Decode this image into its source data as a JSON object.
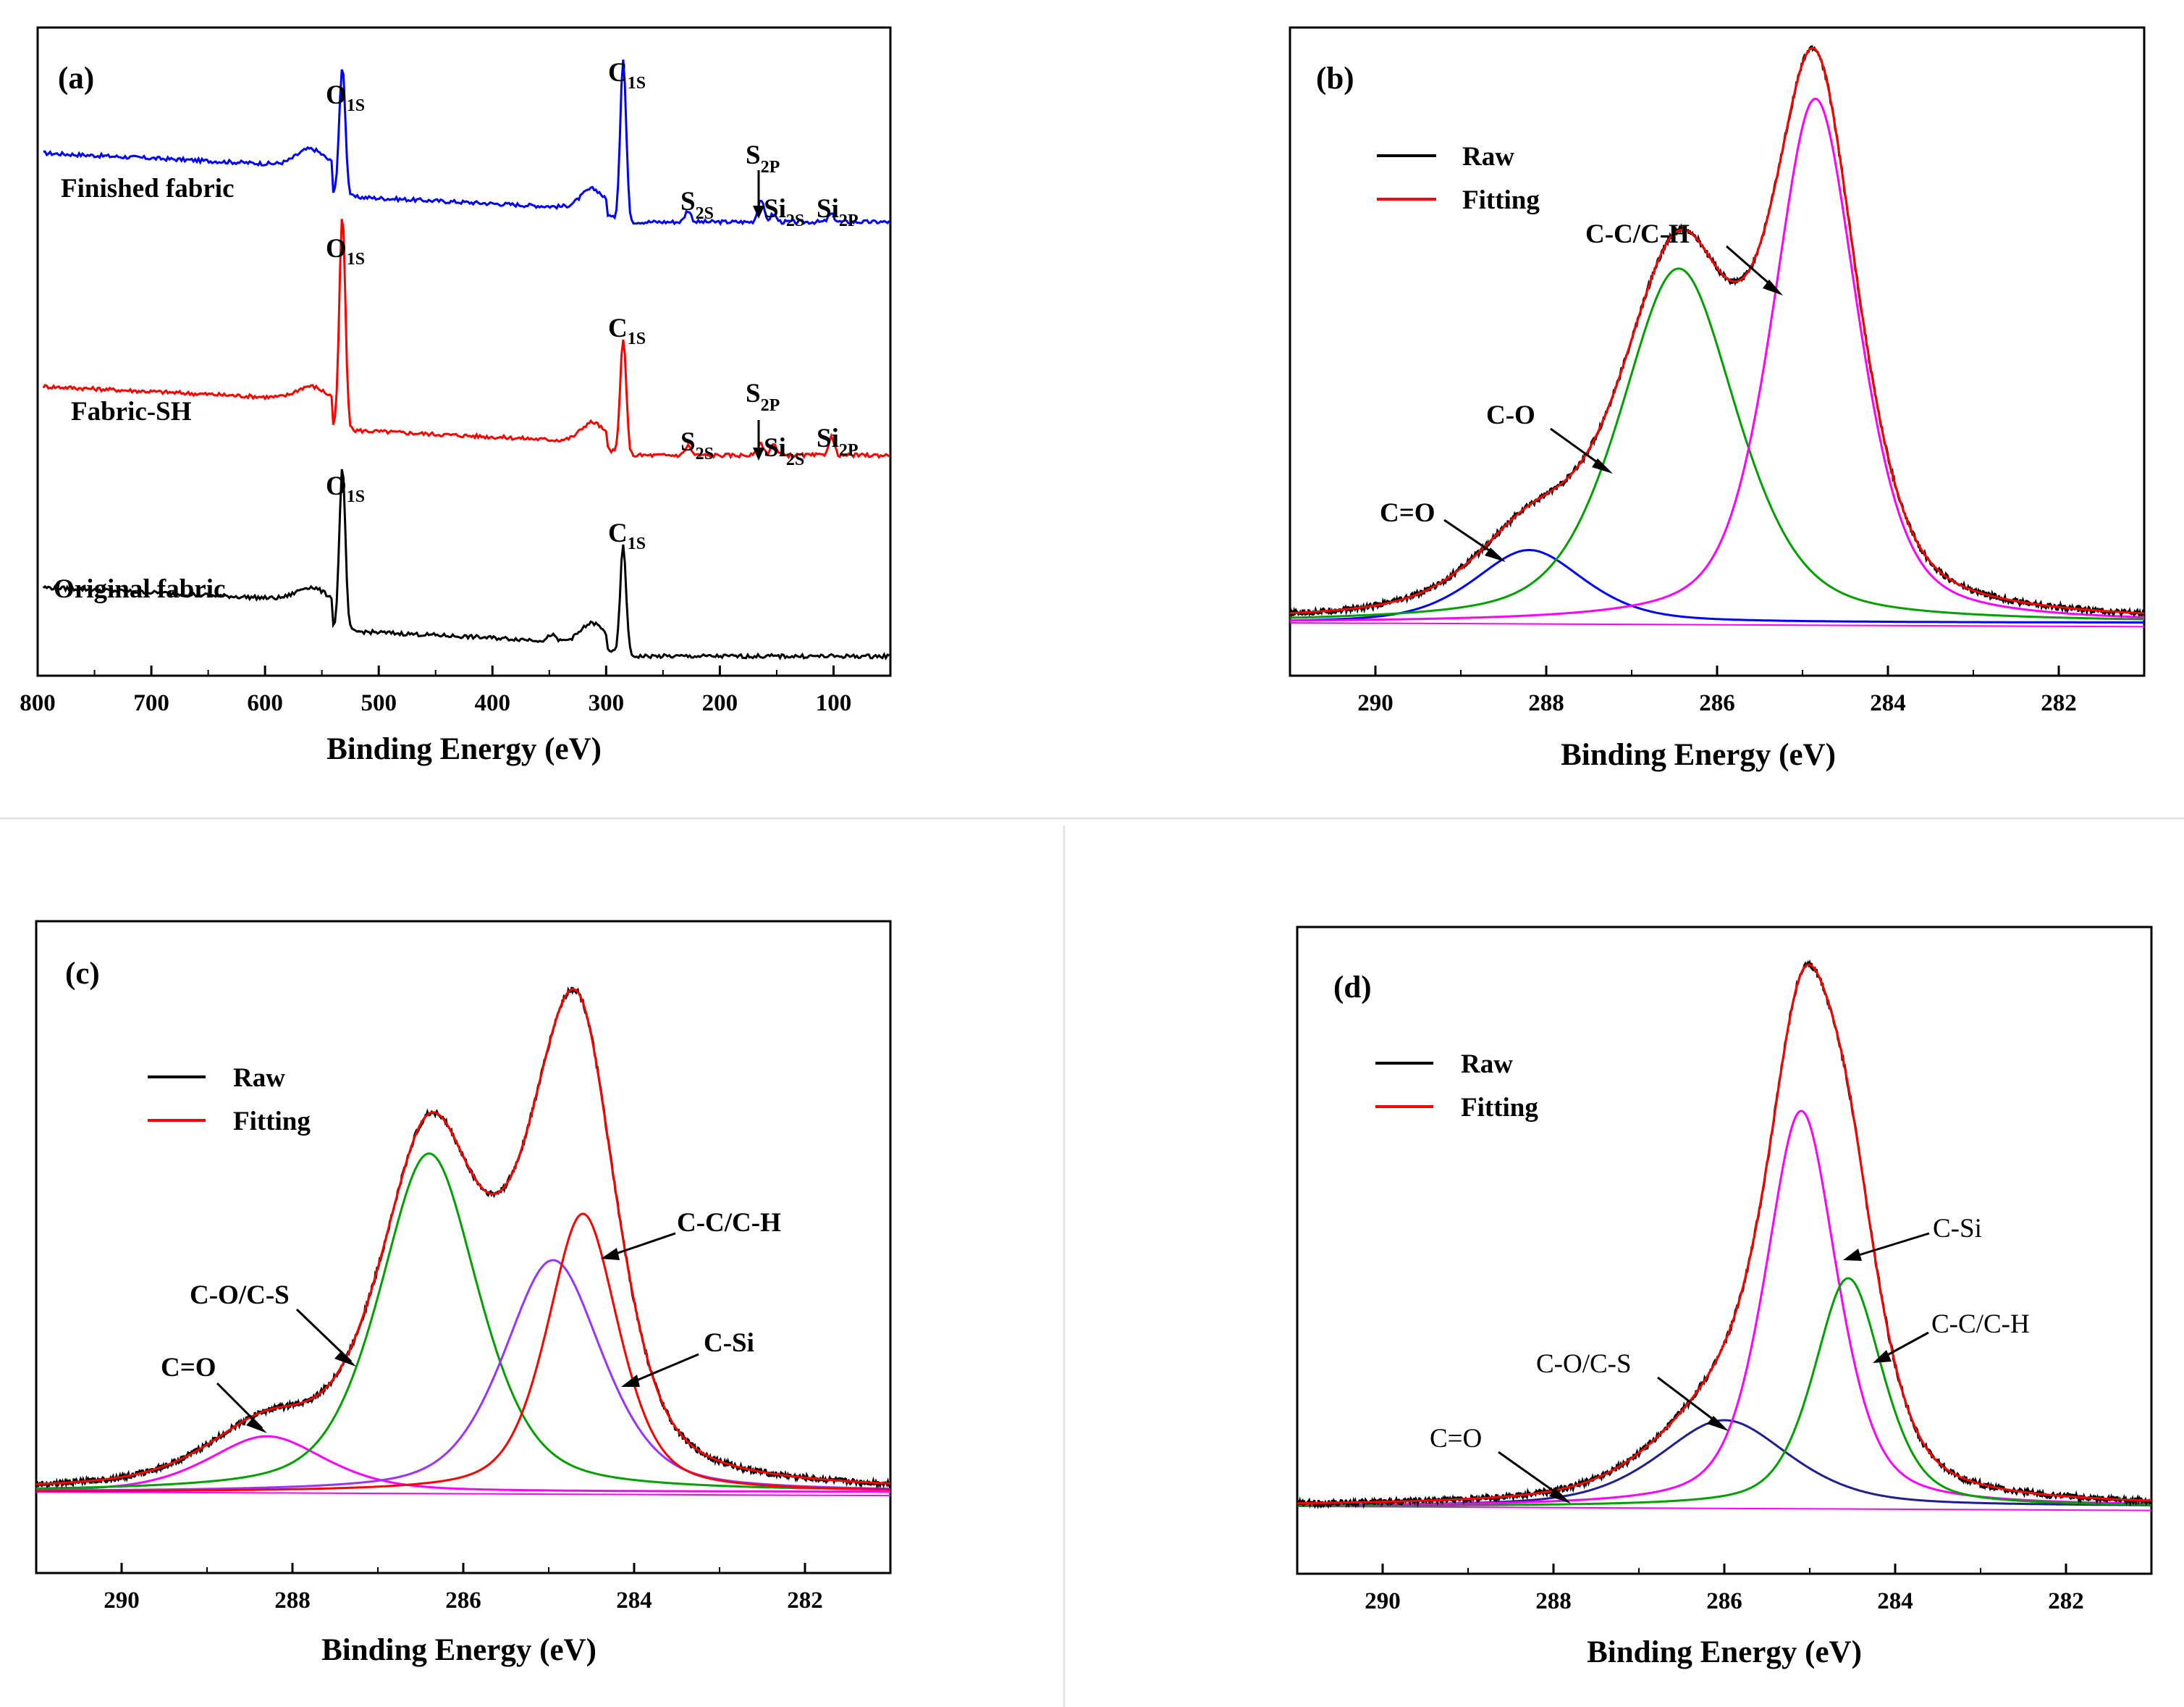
{
  "colors": {
    "raw": "#000000",
    "fitting": "#ff0000",
    "blue": "#0000ff",
    "green": "#00a000",
    "magenta": "#ff00ff",
    "purple": "#9933ff",
    "navy": "#1f1f8f",
    "axis": "#000000",
    "divider": "#e4e4e4"
  },
  "chart_data": [
    {
      "panel": "(a)",
      "type": "line",
      "xlabel": "Binding Energy (eV)",
      "xlim": [
        800,
        50
      ],
      "xticks": [
        800,
        700,
        600,
        500,
        400,
        300,
        200,
        100
      ],
      "y_ticks_shown": false,
      "series": [
        {
          "name": "Finished fabric",
          "color": "#0000ff",
          "offset": 0.72,
          "peaks": [
            {
              "center": 532,
              "height": 0.2
            },
            {
              "center": 285,
              "height": 0.25
            },
            {
              "center": 228,
              "height": 0.018
            },
            {
              "center": 164,
              "height": 0.035
            },
            {
              "center": 153,
              "height": 0.012
            },
            {
              "center": 102,
              "height": 0.012
            }
          ]
        },
        {
          "name": "Fabric-SH",
          "color": "#ff0000",
          "offset": 0.36,
          "peaks": [
            {
              "center": 532,
              "height": 0.33
            },
            {
              "center": 285,
              "height": 0.18
            },
            {
              "center": 228,
              "height": 0.015
            },
            {
              "center": 164,
              "height": 0.018
            },
            {
              "center": 153,
              "height": 0.018
            },
            {
              "center": 102,
              "height": 0.028
            }
          ]
        },
        {
          "name": "Original fabric",
          "color": "#000000",
          "offset": 0.05,
          "peaks": [
            {
              "center": 532,
              "height": 0.25
            },
            {
              "center": 285,
              "height": 0.17
            },
            {
              "center": 348,
              "height": 0.01
            }
          ]
        }
      ],
      "annotations": [
        {
          "main": "O",
          "sub": "1S",
          "series": "Finished fabric",
          "x": 532
        },
        {
          "main": "C",
          "sub": "1S",
          "series": "Finished fabric",
          "x": 285
        },
        {
          "main": "S",
          "sub": "2S",
          "series": "Finished fabric",
          "x": 228
        },
        {
          "main": "S",
          "sub": "2P",
          "series": "Finished fabric",
          "x": 164
        },
        {
          "main": "Si",
          "sub": "2S",
          "series": "Finished fabric",
          "x": 153
        },
        {
          "main": "Si",
          "sub": "2P",
          "series": "Finished fabric",
          "x": 102
        },
        {
          "main": "O",
          "sub": "1S",
          "series": "Fabric-SH",
          "x": 532
        },
        {
          "main": "C",
          "sub": "1S",
          "series": "Fabric-SH",
          "x": 285
        },
        {
          "main": "S",
          "sub": "2S",
          "series": "Fabric-SH",
          "x": 228
        },
        {
          "main": "S",
          "sub": "2P",
          "series": "Fabric-SH",
          "x": 164
        },
        {
          "main": "Si",
          "sub": "2S",
          "series": "Fabric-SH",
          "x": 153
        },
        {
          "main": "Si",
          "sub": "2P",
          "series": "Fabric-SH",
          "x": 102
        },
        {
          "main": "O",
          "sub": "1S",
          "series": "Original fabric",
          "x": 532
        },
        {
          "main": "C",
          "sub": "1S",
          "series": "Original fabric",
          "x": 285
        }
      ]
    },
    {
      "panel": "(b)",
      "type": "line",
      "xlabel": "Binding Energy (eV)",
      "xlim": [
        291,
        281
      ],
      "xticks": [
        290,
        288,
        286,
        284,
        282
      ],
      "ylim": [
        0,
        1.15
      ],
      "y_ticks_shown": false,
      "legend": {
        "position": "top-left",
        "entries": [
          "Raw",
          "Fitting"
        ]
      },
      "components": [
        {
          "name": "C=O",
          "center": 288.2,
          "height": 0.15,
          "width": 0.8,
          "color": "#0000ff"
        },
        {
          "name": "C-O",
          "center": 286.45,
          "height": 0.73,
          "width": 0.85,
          "color": "#00a000"
        },
        {
          "name": "C-C/C-H",
          "center": 284.85,
          "height": 1.08,
          "width": 0.62,
          "color": "#ff00ff"
        }
      ],
      "baseline": {
        "at_low": 0.0,
        "at_high": 0.02
      }
    },
    {
      "panel": "(c)",
      "type": "line",
      "xlabel": "Binding Energy (eV)",
      "xlim": [
        291,
        281
      ],
      "xticks": [
        290,
        288,
        286,
        284,
        282
      ],
      "ylim": [
        0,
        1.1
      ],
      "y_ticks_shown": false,
      "legend": {
        "position": "top-left",
        "entries": [
          "Raw",
          "Fitting"
        ]
      },
      "components": [
        {
          "name": "C=O",
          "center": 288.3,
          "height": 0.12,
          "width": 0.85,
          "color": "#ff00ff"
        },
        {
          "name": "C-O/C-S",
          "center": 286.4,
          "height": 0.73,
          "width": 0.72,
          "color": "#00a000"
        },
        {
          "name": "C-Si",
          "center": 284.95,
          "height": 0.5,
          "width": 0.72,
          "color": "#9933ff"
        },
        {
          "name": "C-C/C-H",
          "center": 284.6,
          "height": 0.6,
          "width": 0.52,
          "color": "#ff0000"
        }
      ],
      "baseline": {
        "at_low": 0.0,
        "at_high": 0.0
      }
    },
    {
      "panel": "(d)",
      "type": "line",
      "xlabel": "Binding Energy (eV)",
      "xlim": [
        291,
        281
      ],
      "xticks": [
        290,
        288,
        286,
        284,
        282
      ],
      "ylim": [
        0,
        1.15
      ],
      "y_ticks_shown": false,
      "legend": {
        "position": "top-left",
        "entries": [
          "Raw",
          "Fitting"
        ]
      },
      "components": [
        {
          "name": "C=O",
          "center": 288.0,
          "height": 0.0,
          "width": 0.6,
          "color": "#ff00ff"
        },
        {
          "name": "C-O/C-S",
          "center": 286.0,
          "height": 0.17,
          "width": 0.95,
          "color": "#1f1f8f"
        },
        {
          "name": "C-Si",
          "center": 285.1,
          "height": 0.78,
          "width": 0.52,
          "color": "#ff00ff"
        },
        {
          "name": "C-C/C-H",
          "center": 284.55,
          "height": 0.45,
          "width": 0.5,
          "color": "#00a000"
        }
      ],
      "baseline": {
        "at_low": 0.0,
        "at_high": 0.0
      }
    }
  ]
}
